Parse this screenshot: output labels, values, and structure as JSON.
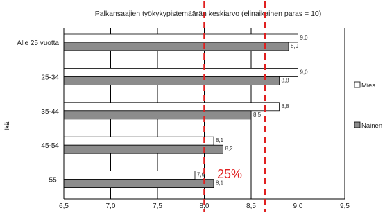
{
  "chart_data": {
    "type": "bar",
    "orientation": "horizontal",
    "title": "Palkansaajien työkykypistemäärän keskiarvo (elinaikainen paras = 10)",
    "ylabel": "Ikä",
    "xlim": [
      6.5,
      9.5
    ],
    "xticks": [
      "6,5",
      "7,0",
      "7,5",
      "8,0",
      "8,5",
      "9,0",
      "9,5"
    ],
    "xtick_values": [
      6.5,
      7.0,
      7.5,
      8.0,
      8.5,
      9.0,
      9.5
    ],
    "categories": [
      "Alle 25 vuotta",
      "25-34",
      "35-44",
      "45-54",
      "55-"
    ],
    "series": [
      {
        "name": "Mies",
        "values": [
          9.0,
          9.0,
          8.8,
          8.1,
          7.9
        ],
        "labels": [
          "9,0",
          "9,0",
          "8,8",
          "8,1",
          "7,9"
        ],
        "color": "#ffffff"
      },
      {
        "name": "Nainen",
        "values": [
          8.9,
          8.8,
          8.5,
          8.2,
          8.1
        ],
        "labels": [
          "8,9",
          "8,8",
          "8,5",
          "8,2",
          "8,1"
        ],
        "color": "#8c8c8c"
      }
    ],
    "grid": true,
    "legend_position": "right",
    "reference_lines": [
      8.0,
      8.65
    ],
    "reference_line_color": "#e02020",
    "annotation": "25%"
  }
}
